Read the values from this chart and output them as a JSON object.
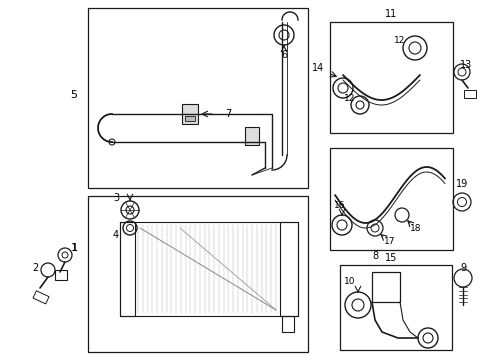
{
  "bg_color": "#ffffff",
  "line_color": "#1a1a1a",
  "gray": "#888888",
  "lightgray": "#cccccc"
}
